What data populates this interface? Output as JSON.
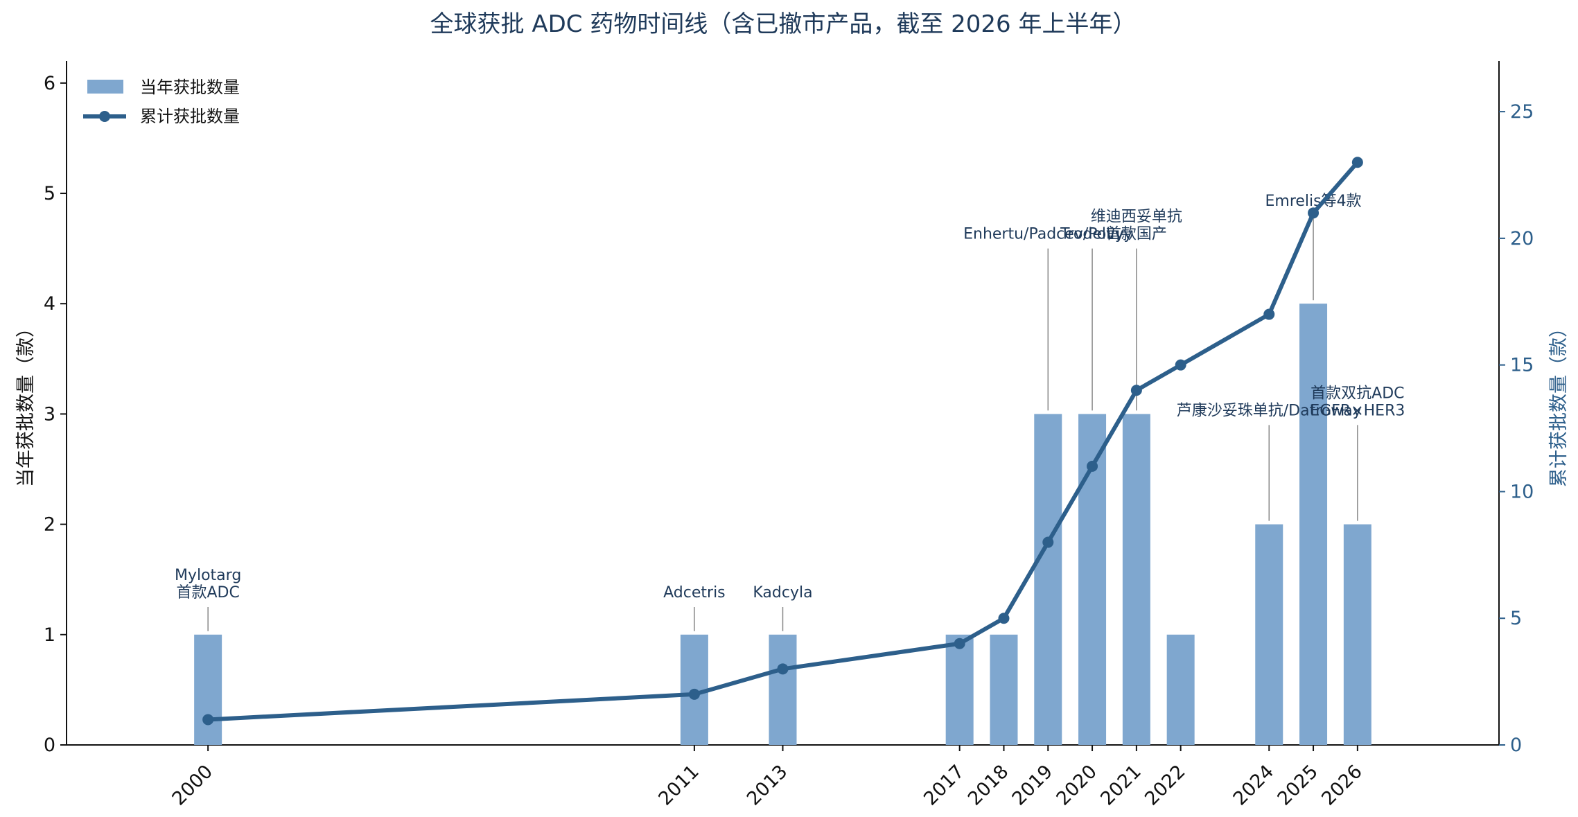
{
  "chart_data": {
    "type": "bar+line",
    "title": "全球获批 ADC 药物时间线（含已撤市产品，截至 2026 年上半年）",
    "ylabel_left": "当年获批数量（款）",
    "ylabel_right": "累计获批数量（款）",
    "ylim_left": [
      0,
      6.2
    ],
    "ylim_right": [
      0,
      27
    ],
    "yticks_left": [
      0,
      1,
      2,
      3,
      4,
      5,
      6
    ],
    "yticks_right": [
      0,
      5,
      10,
      15,
      20,
      25
    ],
    "years": [
      2000,
      2011,
      2013,
      2017,
      2018,
      2019,
      2020,
      2021,
      2022,
      2024,
      2025,
      2026
    ],
    "year_labels": [
      "2000",
      "2011",
      "2013",
      "2017",
      "2018",
      "2019",
      "2020",
      "2021",
      "2022",
      "2024",
      "2025",
      "2026"
    ],
    "series": [
      {
        "name": "当年获批数量",
        "type": "bar",
        "color": "#7fa7cf",
        "values": [
          1,
          1,
          1,
          1,
          1,
          3,
          3,
          3,
          1,
          2,
          4,
          2
        ]
      },
      {
        "name": "累计获批数量",
        "type": "line",
        "color": "#2d5f8b",
        "values": [
          1,
          2,
          3,
          4,
          5,
          8,
          11,
          14,
          15,
          17,
          21,
          23
        ]
      }
    ],
    "legend": {
      "position": "top-left"
    },
    "annotations": [
      {
        "year": 2000,
        "lines": [
          "Mylotarg",
          "首款ADC"
        ]
      },
      {
        "year": 2011,
        "lines": [
          "Adcetris"
        ]
      },
      {
        "year": 2013,
        "lines": [
          "Kadcyla"
        ]
      },
      {
        "year": 2019,
        "lines": [
          "Enhertu/Padcev/Polivy"
        ]
      },
      {
        "year": 2020,
        "lines": [
          "Trodelvy"
        ]
      },
      {
        "year": 2021,
        "lines": [
          "维迪西妥单抗",
          "首款国产"
        ]
      },
      {
        "year": 2024,
        "lines": [
          "芦康沙妥珠单抗/Datroway"
        ]
      },
      {
        "year": 2025,
        "lines": [
          "Emrelis等4款"
        ]
      },
      {
        "year": 2026,
        "lines": [
          "首款双抗ADC",
          "EGFR×HER3"
        ]
      }
    ],
    "grid": false
  }
}
